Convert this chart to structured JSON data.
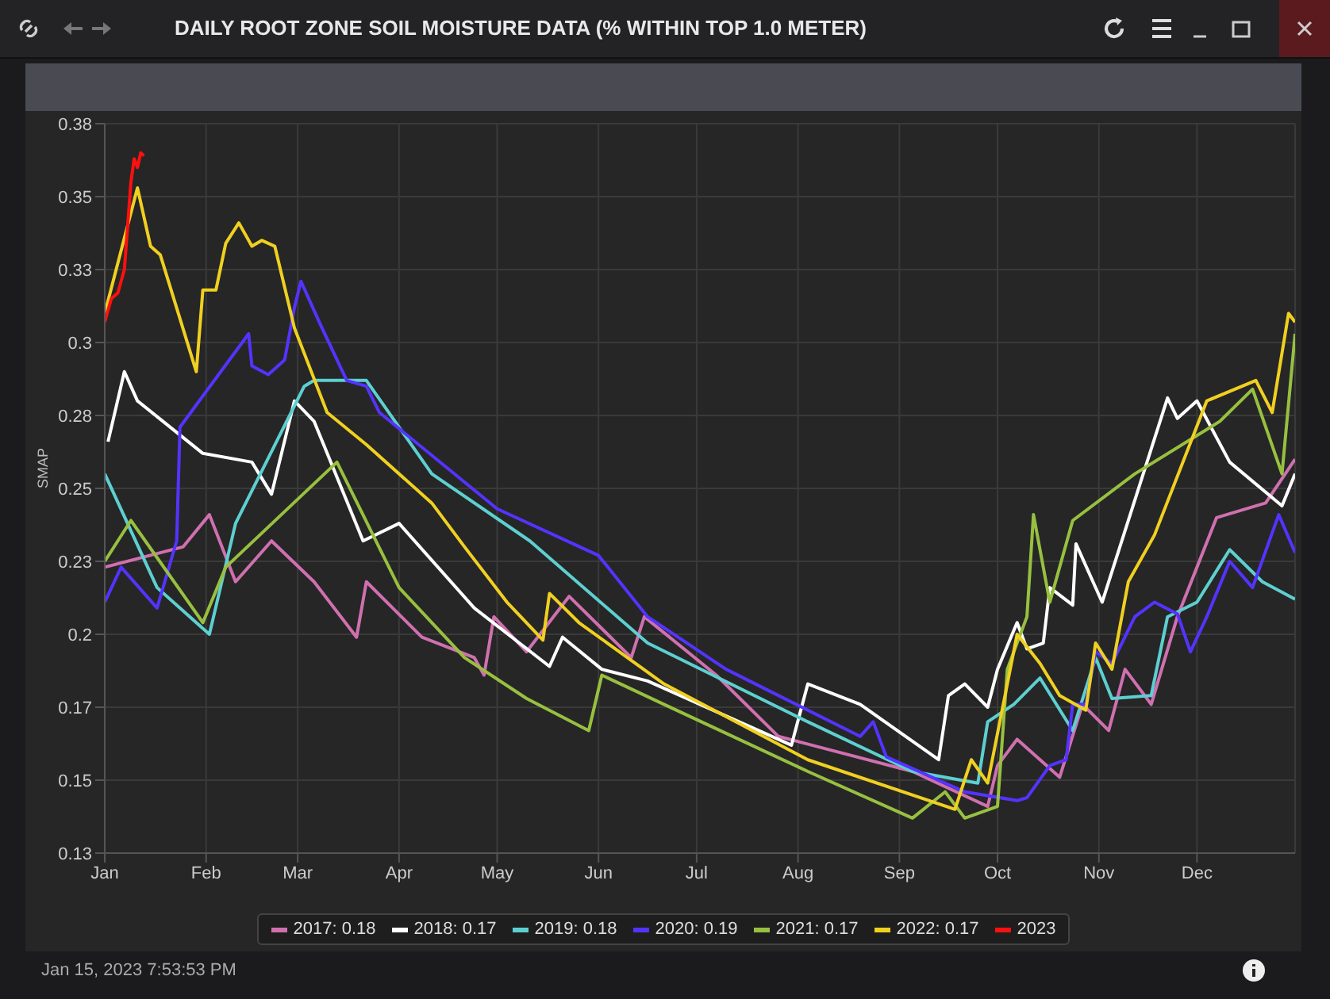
{
  "chart_data": {
    "type": "line",
    "title": "DAILY ROOT ZONE SOIL MOISTURE DATA (% WITHIN TOP 1.0 METER)",
    "ylabel": "SMAP",
    "annotations": [
      "Jan 15, 2023 7:53:53 PM"
    ],
    "xlim": [
      "--01-01",
      "--12-31"
    ],
    "ylim": [
      0.125,
      0.375
    ],
    "xticks": [
      {
        "value": "--01-01",
        "label": "Jan"
      },
      {
        "value": "--02-01",
        "label": "Feb"
      },
      {
        "value": "--03-01",
        "label": "Mar"
      },
      {
        "value": "--04-01",
        "label": "Apr"
      },
      {
        "value": "--05-01",
        "label": "May"
      },
      {
        "value": "--06-01",
        "label": "Jun"
      },
      {
        "value": "--07-01",
        "label": "Jul"
      },
      {
        "value": "--08-01",
        "label": "Aug"
      },
      {
        "value": "--09-01",
        "label": "Sep"
      },
      {
        "value": "--10-01",
        "label": "Oct"
      },
      {
        "value": "--11-01",
        "label": "Nov"
      },
      {
        "value": "--12-01",
        "label": "Dec"
      }
    ],
    "yticks": [
      {
        "value": 0.125,
        "label": "0.13"
      },
      {
        "value": 0.15,
        "label": "0.15"
      },
      {
        "value": 0.175,
        "label": "0.17"
      },
      {
        "value": 0.2,
        "label": "0.2"
      },
      {
        "value": 0.225,
        "label": "0.23"
      },
      {
        "value": 0.25,
        "label": "0.25"
      },
      {
        "value": 0.275,
        "label": "0.28"
      },
      {
        "value": 0.3,
        "label": "0.3"
      },
      {
        "value": 0.325,
        "label": "0.33"
      },
      {
        "value": 0.35,
        "label": "0.35"
      },
      {
        "value": 0.375,
        "label": "0.38"
      }
    ],
    "grid": true,
    "legend": "bottom",
    "marker": "none",
    "line_style": "solid",
    "series": [
      {
        "name": "2017: 0.18",
        "color": "#d070b0",
        "x": [
          "--01-01",
          "--01-25",
          "--02-02",
          "--02-10",
          "--02-21",
          "--03-06",
          "--03-19",
          "--03-22",
          "--04-08",
          "--04-24",
          "--04-27",
          "--04-30",
          "--05-10",
          "--05-23",
          "--06-11",
          "--06-15",
          "--07-07",
          "--07-26",
          "--09-05",
          "--09-28",
          "--10-01",
          "--10-07",
          "--10-20",
          "--10-27",
          "--11-04",
          "--11-09",
          "--11-17",
          "--11-25",
          "--12-07",
          "--12-22",
          "--12-31"
        ],
        "values": [
          0.223,
          0.23,
          0.241,
          0.218,
          0.232,
          0.218,
          0.199,
          0.218,
          0.199,
          0.192,
          0.186,
          0.206,
          0.194,
          0.213,
          0.192,
          0.206,
          0.186,
          0.165,
          0.153,
          0.141,
          0.155,
          0.164,
          0.151,
          0.176,
          0.167,
          0.188,
          0.176,
          0.206,
          0.24,
          0.245,
          0.26
        ]
      },
      {
        "name": "2018: 0.17",
        "color": "#ffffff",
        "x": [
          "--01-02",
          "--01-07",
          "--01-11",
          "--01-31",
          "--02-15",
          "--02-21",
          "--02-28",
          "--03-06",
          "--03-21",
          "--04-01",
          "--04-24",
          "--05-17",
          "--05-21",
          "--06-02",
          "--06-16",
          "--07-30",
          "--08-04",
          "--08-20",
          "--09-13",
          "--09-16",
          "--09-21",
          "--09-28",
          "--10-01",
          "--10-07",
          "--10-10",
          "--10-15",
          "--10-17",
          "--10-24",
          "--10-25",
          "--11-02",
          "--11-22",
          "--11-25",
          "--12-01",
          "--12-11",
          "--12-27",
          "--12-31"
        ],
        "values": [
          0.266,
          0.29,
          0.28,
          0.262,
          0.259,
          0.248,
          0.28,
          0.273,
          0.232,
          0.238,
          0.209,
          0.189,
          0.199,
          0.188,
          0.184,
          0.162,
          0.183,
          0.176,
          0.157,
          0.179,
          0.183,
          0.175,
          0.188,
          0.204,
          0.195,
          0.197,
          0.216,
          0.21,
          0.231,
          0.211,
          0.281,
          0.274,
          0.28,
          0.259,
          0.244,
          0.255
        ]
      },
      {
        "name": "2019: 0.18",
        "color": "#5ecfd0",
        "x": [
          "--01-01",
          "--01-17",
          "--02-02",
          "--02-10",
          "--03-03",
          "--03-06",
          "--03-22",
          "--04-11",
          "--05-11",
          "--06-16",
          "--08-04",
          "--09-05",
          "--09-25",
          "--09-28",
          "--10-06",
          "--10-14",
          "--10-24",
          "--10-31",
          "--11-05",
          "--11-17",
          "--11-22",
          "--12-01",
          "--12-11",
          "--12-21",
          "--12-31"
        ],
        "values": [
          0.255,
          0.216,
          0.2,
          0.238,
          0.285,
          0.287,
          0.287,
          0.255,
          0.232,
          0.197,
          0.17,
          0.153,
          0.149,
          0.17,
          0.176,
          0.185,
          0.167,
          0.192,
          0.178,
          0.179,
          0.206,
          0.211,
          0.229,
          0.218,
          0.212
        ]
      },
      {
        "name": "2020: 0.19",
        "color": "#5533ff",
        "x": [
          "--01-01",
          "--01-06",
          "--01-17",
          "--01-23",
          "--01-24",
          "--02-14",
          "--02-15",
          "--02-20",
          "--02-25",
          "--02-28",
          "--03-02",
          "--03-08",
          "--03-16",
          "--03-22",
          "--03-26",
          "--05-01",
          "--06-01",
          "--06-16",
          "--07-10",
          "--08-20",
          "--08-24",
          "--08-28",
          "--09-21",
          "--10-07",
          "--10-10",
          "--10-17",
          "--10-22",
          "--10-24",
          "--10-28",
          "--10-31",
          "--11-05",
          "--11-12",
          "--11-18",
          "--11-25",
          "--11-29",
          "--12-04",
          "--12-11",
          "--12-18",
          "--12-26",
          "--12-31"
        ],
        "values": [
          0.211,
          0.223,
          0.209,
          0.232,
          0.271,
          0.303,
          0.292,
          0.289,
          0.294,
          0.312,
          0.321,
          0.306,
          0.287,
          0.285,
          0.276,
          0.243,
          0.227,
          0.206,
          0.188,
          0.165,
          0.17,
          0.158,
          0.146,
          0.143,
          0.144,
          0.155,
          0.157,
          0.176,
          0.176,
          0.194,
          0.19,
          0.206,
          0.211,
          0.207,
          0.194,
          0.206,
          0.225,
          0.216,
          0.241,
          0.228
        ]
      },
      {
        "name": "2021: 0.17",
        "color": "#98c040",
        "x": [
          "--01-01",
          "--01-09",
          "--01-31",
          "--02-07",
          "--03-13",
          "--04-01",
          "--04-21",
          "--05-10",
          "--05-29",
          "--06-02",
          "--06-21",
          "--08-04",
          "--09-05",
          "--09-15",
          "--09-21",
          "--10-01",
          "--10-04",
          "--10-10",
          "--10-12",
          "--10-17",
          "--10-24",
          "--11-12",
          "--12-08",
          "--12-18",
          "--12-27",
          "--12-31"
        ],
        "values": [
          0.225,
          0.239,
          0.204,
          0.223,
          0.259,
          0.216,
          0.192,
          0.178,
          0.167,
          0.186,
          0.176,
          0.153,
          0.137,
          0.146,
          0.137,
          0.141,
          0.188,
          0.206,
          0.241,
          0.211,
          0.239,
          0.255,
          0.273,
          0.284,
          0.255,
          0.303
        ]
      },
      {
        "name": "2022: 0.17",
        "color": "#f0d020",
        "x": [
          "--01-01",
          "--01-11",
          "--01-15",
          "--01-18",
          "--01-29",
          "--01-31",
          "--02-04",
          "--02-07",
          "--02-11",
          "--02-15",
          "--02-18",
          "--02-22",
          "--02-28",
          "--03-10",
          "--03-22",
          "--04-11",
          "--04-21",
          "--05-04",
          "--05-15",
          "--05-17",
          "--05-26",
          "--06-21",
          "--08-04",
          "--09-18",
          "--09-23",
          "--09-28",
          "--10-07",
          "--10-14",
          "--10-20",
          "--10-28",
          "--10-31",
          "--11-05",
          "--11-10",
          "--11-18",
          "--12-04",
          "--12-19",
          "--12-24",
          "--12-29",
          "--12-31"
        ],
        "values": [
          0.31,
          0.353,
          0.333,
          0.33,
          0.29,
          0.318,
          0.318,
          0.334,
          0.341,
          0.333,
          0.335,
          0.333,
          0.305,
          0.276,
          0.265,
          0.245,
          0.23,
          0.211,
          0.198,
          0.214,
          0.204,
          0.183,
          0.157,
          0.14,
          0.157,
          0.149,
          0.2,
          0.19,
          0.179,
          0.174,
          0.197,
          0.188,
          0.218,
          0.234,
          0.28,
          0.287,
          0.276,
          0.31,
          0.307
        ]
      },
      {
        "name": "2023",
        "color": "#ff1010",
        "x": [
          "--01-01",
          "--01-03",
          "--01-05",
          "--01-07",
          "--01-08",
          "--01-09",
          "--01-10",
          "--01-11",
          "--01-12",
          "--01-13"
        ],
        "values": [
          0.307,
          0.315,
          0.317,
          0.325,
          0.34,
          0.355,
          0.363,
          0.36,
          0.365,
          0.364
        ]
      }
    ]
  }
}
